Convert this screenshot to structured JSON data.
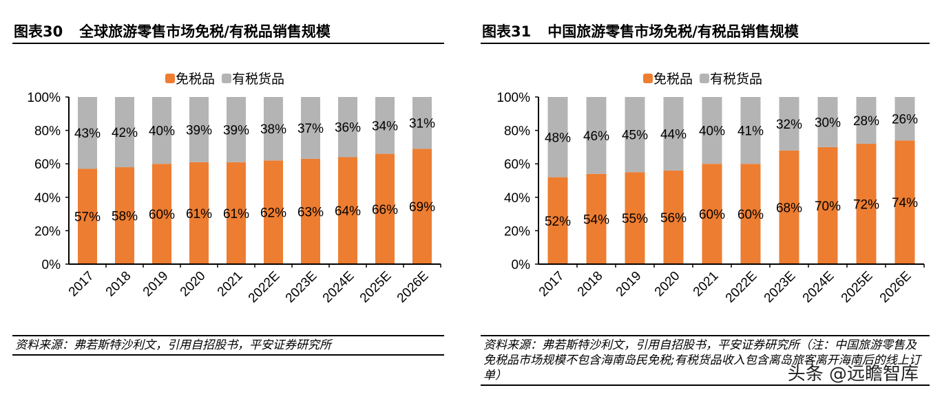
{
  "colors": {
    "duty_free": "#ED7D31",
    "duty_paid": "#B4B4B4"
  },
  "chart_data": [
    {
      "type": "bar",
      "stacked": true,
      "percent": true,
      "fig_label": "图表30",
      "title": "全球旅游零售市场免税/有税品销售规模",
      "categories": [
        "2017",
        "2018",
        "2019",
        "2020",
        "2021",
        "2022E",
        "2023E",
        "2024E",
        "2025E",
        "2026E"
      ],
      "series": [
        {
          "name": "免税品",
          "values": [
            57,
            58,
            60,
            61,
            61,
            62,
            63,
            64,
            66,
            69
          ]
        },
        {
          "name": "有税货品",
          "values": [
            43,
            42,
            40,
            39,
            39,
            38,
            37,
            36,
            34,
            31
          ]
        }
      ],
      "y_ticks": [
        "0%",
        "20%",
        "40%",
        "60%",
        "80%",
        "100%"
      ],
      "ylim": [
        0,
        100
      ],
      "legend": "top",
      "grid": false,
      "source": "资料来源：弗若斯特沙利文，引用自招股书，平安证券研究所"
    },
    {
      "type": "bar",
      "stacked": true,
      "percent": true,
      "fig_label": "图表31",
      "title": "中国旅游零售市场免税/有税品销售规模",
      "categories": [
        "2017",
        "2018",
        "2019",
        "2020",
        "2021",
        "2022E",
        "2023E",
        "2024E",
        "2025E",
        "2026E"
      ],
      "series": [
        {
          "name": "免税品",
          "values": [
            52,
            54,
            55,
            56,
            60,
            60,
            68,
            70,
            72,
            74
          ]
        },
        {
          "name": "有税货品",
          "values": [
            48,
            46,
            45,
            44,
            40,
            41,
            32,
            30,
            28,
            26
          ]
        }
      ],
      "y_ticks": [
        "0%",
        "20%",
        "40%",
        "60%",
        "80%",
        "100%"
      ],
      "ylim": [
        0,
        100
      ],
      "legend": "top",
      "grid": false,
      "source": "资料来源：弗若斯特沙利文，引用自招股书，平安证券研究所（注：中国旅游零售及免税品市场规模不包含海南岛民免税;有税货品收入包含离岛旅客离开海南后的线上订单）"
    }
  ],
  "watermark": "头条 @远瞻智库"
}
